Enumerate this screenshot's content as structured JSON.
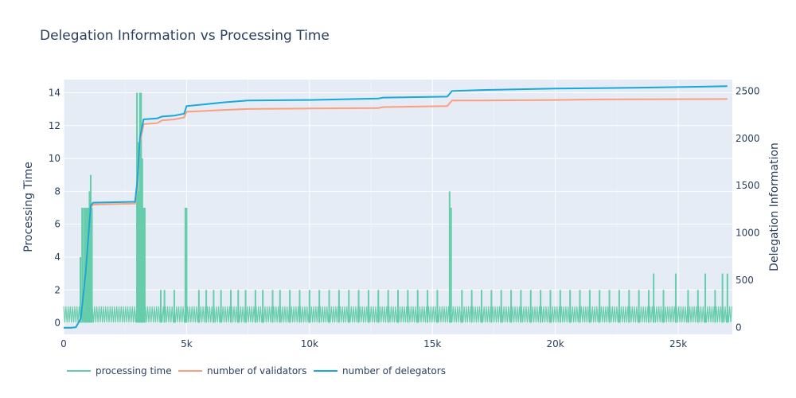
{
  "chart_data": {
    "type": "line",
    "title": "Delegation Information vs Processing Time",
    "xlabel": "",
    "ylabel": "Processing Time",
    "y2label": "Delegation Information",
    "xlim": [
      0,
      27200
    ],
    "ylim": [
      -0.7,
      14.8
    ],
    "y2lim": [
      -70,
      2620
    ],
    "x_ticks": [
      {
        "v": 0,
        "label": "0"
      },
      {
        "v": 5000,
        "label": "5k"
      },
      {
        "v": 10000,
        "label": "10k"
      },
      {
        "v": 15000,
        "label": "15k"
      },
      {
        "v": 20000,
        "label": "20k"
      },
      {
        "v": 25000,
        "label": "25k"
      }
    ],
    "y_ticks": [
      {
        "v": 0,
        "label": "0"
      },
      {
        "v": 2,
        "label": "2"
      },
      {
        "v": 4,
        "label": "4"
      },
      {
        "v": 6,
        "label": "6"
      },
      {
        "v": 8,
        "label": "8"
      },
      {
        "v": 10,
        "label": "10"
      },
      {
        "v": 12,
        "label": "12"
      },
      {
        "v": 14,
        "label": "14"
      }
    ],
    "y2_ticks": [
      {
        "v": 0,
        "label": "0"
      },
      {
        "v": 500,
        "label": "500"
      },
      {
        "v": 1000,
        "label": "1000"
      },
      {
        "v": 1500,
        "label": "1500"
      },
      {
        "v": 2000,
        "label": "2000"
      },
      {
        "v": 2500,
        "label": "2500"
      }
    ],
    "grid": true,
    "legend_position": "bottom-left",
    "series": [
      {
        "name": "processing time",
        "axis": "left",
        "color": "#66cdaa",
        "baseline": [
          0,
          1
        ],
        "spikes": [
          {
            "x": 680,
            "y": 4
          },
          {
            "x": 750,
            "y": 7
          },
          {
            "x": 820,
            "y": 7
          },
          {
            "x": 880,
            "y": 7
          },
          {
            "x": 940,
            "y": 7
          },
          {
            "x": 1000,
            "y": 7
          },
          {
            "x": 1050,
            "y": 8
          },
          {
            "x": 1100,
            "y": 9
          },
          {
            "x": 1150,
            "y": 7
          },
          {
            "x": 2980,
            "y": 14
          },
          {
            "x": 3020,
            "y": 11
          },
          {
            "x": 3060,
            "y": 8
          },
          {
            "x": 3100,
            "y": 14
          },
          {
            "x": 3150,
            "y": 14
          },
          {
            "x": 3200,
            "y": 10
          },
          {
            "x": 3240,
            "y": 7
          },
          {
            "x": 3300,
            "y": 7
          },
          {
            "x": 3950,
            "y": 2
          },
          {
            "x": 4100,
            "y": 2
          },
          {
            "x": 4500,
            "y": 2
          },
          {
            "x": 4950,
            "y": 7
          },
          {
            "x": 5000,
            "y": 7
          },
          {
            "x": 5500,
            "y": 2
          },
          {
            "x": 5800,
            "y": 2
          },
          {
            "x": 6100,
            "y": 2
          },
          {
            "x": 6400,
            "y": 2
          },
          {
            "x": 6800,
            "y": 2
          },
          {
            "x": 7100,
            "y": 2
          },
          {
            "x": 7400,
            "y": 2
          },
          {
            "x": 7800,
            "y": 2
          },
          {
            "x": 8100,
            "y": 2
          },
          {
            "x": 8500,
            "y": 2
          },
          {
            "x": 8800,
            "y": 2
          },
          {
            "x": 9200,
            "y": 2
          },
          {
            "x": 9600,
            "y": 2
          },
          {
            "x": 10000,
            "y": 2
          },
          {
            "x": 10400,
            "y": 2
          },
          {
            "x": 10800,
            "y": 2
          },
          {
            "x": 11200,
            "y": 2
          },
          {
            "x": 11600,
            "y": 2
          },
          {
            "x": 12000,
            "y": 2
          },
          {
            "x": 12400,
            "y": 2
          },
          {
            "x": 12800,
            "y": 2
          },
          {
            "x": 13200,
            "y": 2
          },
          {
            "x": 13600,
            "y": 2
          },
          {
            "x": 14000,
            "y": 2
          },
          {
            "x": 14400,
            "y": 2
          },
          {
            "x": 14800,
            "y": 2
          },
          {
            "x": 15200,
            "y": 2
          },
          {
            "x": 15700,
            "y": 8
          },
          {
            "x": 15760,
            "y": 7
          },
          {
            "x": 16200,
            "y": 2
          },
          {
            "x": 16600,
            "y": 2
          },
          {
            "x": 17000,
            "y": 2
          },
          {
            "x": 17400,
            "y": 2
          },
          {
            "x": 17800,
            "y": 2
          },
          {
            "x": 18200,
            "y": 2
          },
          {
            "x": 18600,
            "y": 2
          },
          {
            "x": 19000,
            "y": 2
          },
          {
            "x": 19400,
            "y": 2
          },
          {
            "x": 19800,
            "y": 2
          },
          {
            "x": 20200,
            "y": 2
          },
          {
            "x": 20600,
            "y": 2
          },
          {
            "x": 21000,
            "y": 2
          },
          {
            "x": 21400,
            "y": 2
          },
          {
            "x": 21800,
            "y": 2
          },
          {
            "x": 22200,
            "y": 2
          },
          {
            "x": 22600,
            "y": 2
          },
          {
            "x": 23000,
            "y": 2
          },
          {
            "x": 23400,
            "y": 2
          },
          {
            "x": 23800,
            "y": 2
          },
          {
            "x": 24000,
            "y": 3
          },
          {
            "x": 24400,
            "y": 2
          },
          {
            "x": 24900,
            "y": 3
          },
          {
            "x": 25400,
            "y": 2
          },
          {
            "x": 25800,
            "y": 2
          },
          {
            "x": 26100,
            "y": 3
          },
          {
            "x": 26500,
            "y": 2
          },
          {
            "x": 26800,
            "y": 3
          },
          {
            "x": 27000,
            "y": 3
          }
        ]
      },
      {
        "name": "number of validators",
        "axis": "right",
        "color": "#fc9f7e",
        "x": [
          0,
          300,
          500,
          700,
          900,
          1100,
          1200,
          2900,
          3000,
          3100,
          3250,
          3800,
          4000,
          4500,
          4900,
          5000,
          5800,
          6500,
          7500,
          10000,
          12800,
          13000,
          15600,
          15800,
          17000,
          20000,
          21500,
          23000,
          27000
        ],
        "y": [
          0,
          0,
          5,
          100,
          600,
          1270,
          1300,
          1310,
          1500,
          1950,
          2150,
          2160,
          2190,
          2200,
          2220,
          2280,
          2290,
          2300,
          2310,
          2315,
          2320,
          2330,
          2340,
          2400,
          2400,
          2405,
          2410,
          2412,
          2415
        ]
      },
      {
        "name": "number of delegators",
        "axis": "right",
        "color": "#17a9d8",
        "x": [
          0,
          300,
          500,
          700,
          900,
          1100,
          1200,
          2900,
          3000,
          3100,
          3250,
          3800,
          4000,
          4500,
          4900,
          5000,
          5800,
          6500,
          7500,
          10000,
          12800,
          13000,
          15600,
          15800,
          17000,
          20000,
          23500,
          27000
        ],
        "y": [
          0,
          0,
          5,
          100,
          600,
          1290,
          1320,
          1330,
          1550,
          2000,
          2200,
          2210,
          2230,
          2240,
          2260,
          2340,
          2360,
          2380,
          2400,
          2405,
          2420,
          2430,
          2440,
          2500,
          2510,
          2525,
          2535,
          2550
        ]
      }
    ]
  }
}
